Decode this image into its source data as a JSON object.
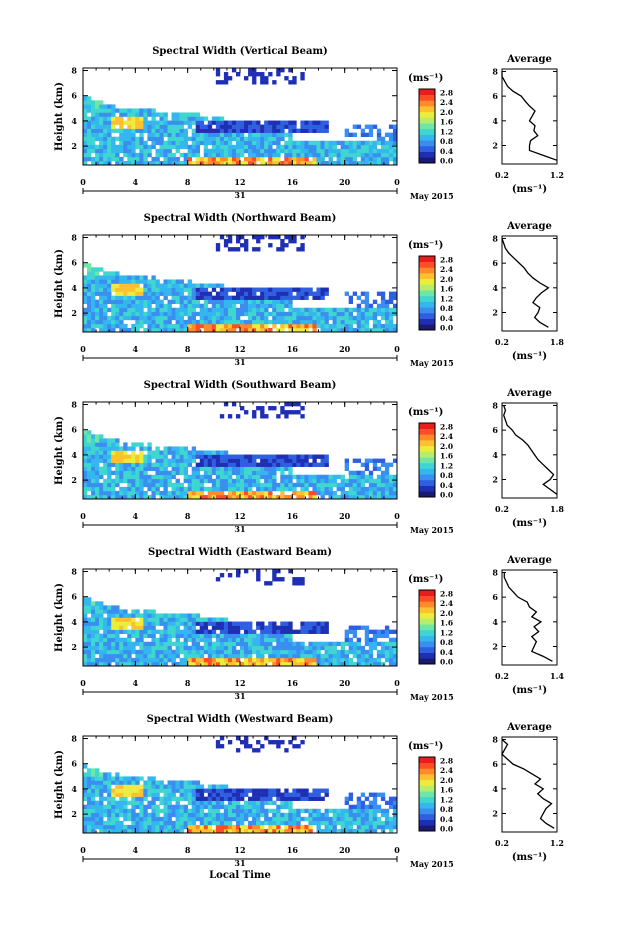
{
  "figure": {
    "common_xlabel": "Local Time",
    "date_label": "May 2015",
    "day_label": "31",
    "colorbar_unit": "(ms⁻¹)",
    "colorbar_ticks": [
      "2.8",
      "2.4",
      "2.0",
      "1.6",
      "1.2",
      "0.8",
      "0.4",
      "0.0"
    ],
    "colormap": [
      "#1a1a6e",
      "#1f2fb4",
      "#2e5fe0",
      "#3a8ef0",
      "#33b7ee",
      "#3fd6d0",
      "#70e6a6",
      "#b5ee6a",
      "#ecec3c",
      "#ffc030",
      "#ff8a2a",
      "#ff4d28",
      "#e81e1e"
    ]
  },
  "chart_data": [
    {
      "type": "heatmap",
      "beam": "vertical",
      "title": "Spectral Width (Vertical Beam)",
      "xlabel": "Local Time",
      "ylabel": "Height (km)",
      "x_ticks": [
        "0",
        "4",
        "8",
        "12",
        "16",
        "20",
        "0"
      ],
      "y_ticks": [
        "2",
        "4",
        "6",
        "8"
      ],
      "xlim": [
        0,
        24
      ],
      "ylim": [
        0.5,
        8.2
      ],
      "colorbar_range": [
        0,
        2.8
      ],
      "profile": {
        "title": "Average",
        "xlabel": "(ms⁻¹)",
        "x_ticks": [
          "0.2",
          "1.2"
        ],
        "xlim": [
          0.2,
          1.2
        ],
        "y_ticks": [
          "2",
          "4",
          "6",
          "8"
        ],
        "ylim": [
          0.5,
          8.2
        ],
        "height": [
          0.8,
          1.2,
          1.6,
          2.0,
          2.4,
          2.8,
          3.2,
          3.6,
          4.0,
          4.4,
          4.8,
          5.2,
          5.6,
          6.0,
          6.4,
          6.8,
          7.2,
          7.6,
          8.0
        ],
        "value": [
          1.2,
          0.95,
          0.7,
          0.7,
          0.72,
          0.85,
          0.78,
          0.8,
          0.7,
          0.75,
          0.8,
          0.7,
          0.62,
          0.55,
          0.4,
          0.3,
          0.25,
          0.2,
          0.2
        ]
      }
    },
    {
      "type": "heatmap",
      "beam": "northward",
      "title": "Spectral Width (Northward Beam)",
      "xlabel": "Local Time",
      "ylabel": "Height (km)",
      "x_ticks": [
        "0",
        "4",
        "8",
        "12",
        "16",
        "20",
        "0"
      ],
      "y_ticks": [
        "2",
        "4",
        "6",
        "8"
      ],
      "xlim": [
        0,
        24
      ],
      "ylim": [
        0.5,
        8.2
      ],
      "colorbar_range": [
        0,
        2.8
      ],
      "profile": {
        "title": "Average",
        "xlabel": "(ms⁻¹)",
        "x_ticks": [
          "0.2",
          "1.8"
        ],
        "xlim": [
          0.2,
          1.8
        ],
        "y_ticks": [
          "2",
          "4",
          "6",
          "8"
        ],
        "ylim": [
          0.5,
          8.2
        ],
        "height": [
          0.8,
          1.2,
          1.6,
          2.0,
          2.4,
          2.8,
          3.2,
          3.6,
          4.0,
          4.4,
          4.8,
          5.2,
          5.6,
          6.0,
          6.4,
          6.8,
          7.2,
          7.6,
          8.0
        ],
        "value": [
          1.55,
          1.3,
          1.15,
          1.25,
          1.3,
          1.1,
          1.2,
          1.35,
          1.55,
          1.3,
          1.1,
          0.95,
          0.85,
          0.7,
          0.55,
          0.4,
          0.3,
          0.25,
          0.2
        ]
      }
    },
    {
      "type": "heatmap",
      "beam": "southward",
      "title": "Spectral Width (Southward Beam)",
      "xlabel": "Local Time",
      "ylabel": "Height (km)",
      "x_ticks": [
        "0",
        "4",
        "8",
        "12",
        "16",
        "20",
        "0"
      ],
      "y_ticks": [
        "2",
        "4",
        "6",
        "8"
      ],
      "xlim": [
        0,
        24
      ],
      "ylim": [
        0.5,
        8.2
      ],
      "colorbar_range": [
        0,
        2.8
      ],
      "profile": {
        "title": "Average",
        "xlabel": "(ms⁻¹)",
        "x_ticks": [
          "0.2",
          "1.8"
        ],
        "xlim": [
          0.2,
          1.8
        ],
        "y_ticks": [
          "2",
          "4",
          "6",
          "8"
        ],
        "ylim": [
          0.5,
          8.2
        ],
        "height": [
          0.8,
          1.2,
          1.6,
          2.0,
          2.4,
          2.8,
          3.2,
          3.6,
          4.0,
          4.4,
          4.8,
          5.2,
          5.6,
          6.0,
          6.4,
          6.8,
          7.2,
          7.6,
          8.0
        ],
        "value": [
          1.8,
          1.6,
          1.4,
          1.6,
          1.7,
          1.55,
          1.4,
          1.25,
          1.15,
          1.05,
          0.95,
          0.8,
          0.6,
          0.5,
          0.35,
          0.3,
          0.25,
          0.3,
          0.25
        ]
      }
    },
    {
      "type": "heatmap",
      "beam": "eastward",
      "title": "Spectral Width (Eastward Beam)",
      "xlabel": "Local Time",
      "ylabel": "Height (km)",
      "x_ticks": [
        "0",
        "4",
        "8",
        "12",
        "16",
        "20",
        "0"
      ],
      "y_ticks": [
        "2",
        "4",
        "6",
        "8"
      ],
      "xlim": [
        0,
        24
      ],
      "ylim": [
        0.5,
        8.2
      ],
      "colorbar_range": [
        0,
        2.8
      ],
      "profile": {
        "title": "Average",
        "xlabel": "(ms⁻¹)",
        "x_ticks": [
          "0.2",
          "1.4"
        ],
        "xlim": [
          0.2,
          1.4
        ],
        "y_ticks": [
          "2",
          "4",
          "6",
          "8"
        ],
        "ylim": [
          0.5,
          8.2
        ],
        "height": [
          0.8,
          1.2,
          1.6,
          2.0,
          2.4,
          2.8,
          3.2,
          3.6,
          4.0,
          4.4,
          4.8,
          5.2,
          5.6,
          6.0,
          6.4,
          6.8,
          7.2,
          7.6,
          8.0
        ],
        "value": [
          1.3,
          1.1,
          0.85,
          0.9,
          0.95,
          0.85,
          1.0,
          0.9,
          1.05,
          0.85,
          0.95,
          0.8,
          0.75,
          0.55,
          0.45,
          0.35,
          0.3,
          0.25,
          0.25
        ]
      }
    },
    {
      "type": "heatmap",
      "beam": "westward",
      "title": "Spectral Width (Westward Beam)",
      "xlabel": "Local Time",
      "ylabel": "Height (km)",
      "x_ticks": [
        "0",
        "4",
        "8",
        "12",
        "16",
        "20",
        "0"
      ],
      "y_ticks": [
        "2",
        "4",
        "6",
        "8"
      ],
      "xlim": [
        0,
        24
      ],
      "ylim": [
        0.5,
        8.2
      ],
      "colorbar_range": [
        0,
        2.8
      ],
      "profile": {
        "title": "Average",
        "xlabel": "(ms⁻¹)",
        "x_ticks": [
          "0.2",
          "1.2"
        ],
        "xlim": [
          0.2,
          1.2
        ],
        "y_ticks": [
          "2",
          "4",
          "6",
          "8"
        ],
        "ylim": [
          0.5,
          8.2
        ],
        "height": [
          0.8,
          1.2,
          1.6,
          2.0,
          2.4,
          2.8,
          3.2,
          3.6,
          4.0,
          4.4,
          4.8,
          5.2,
          5.6,
          6.0,
          6.4,
          6.8,
          7.2,
          7.6,
          8.0
        ],
        "value": [
          1.15,
          1.0,
          0.9,
          0.95,
          1.0,
          1.1,
          0.95,
          0.85,
          0.95,
          0.8,
          0.9,
          0.75,
          0.6,
          0.4,
          0.3,
          0.2,
          0.25,
          0.3,
          0.2
        ]
      }
    }
  ]
}
